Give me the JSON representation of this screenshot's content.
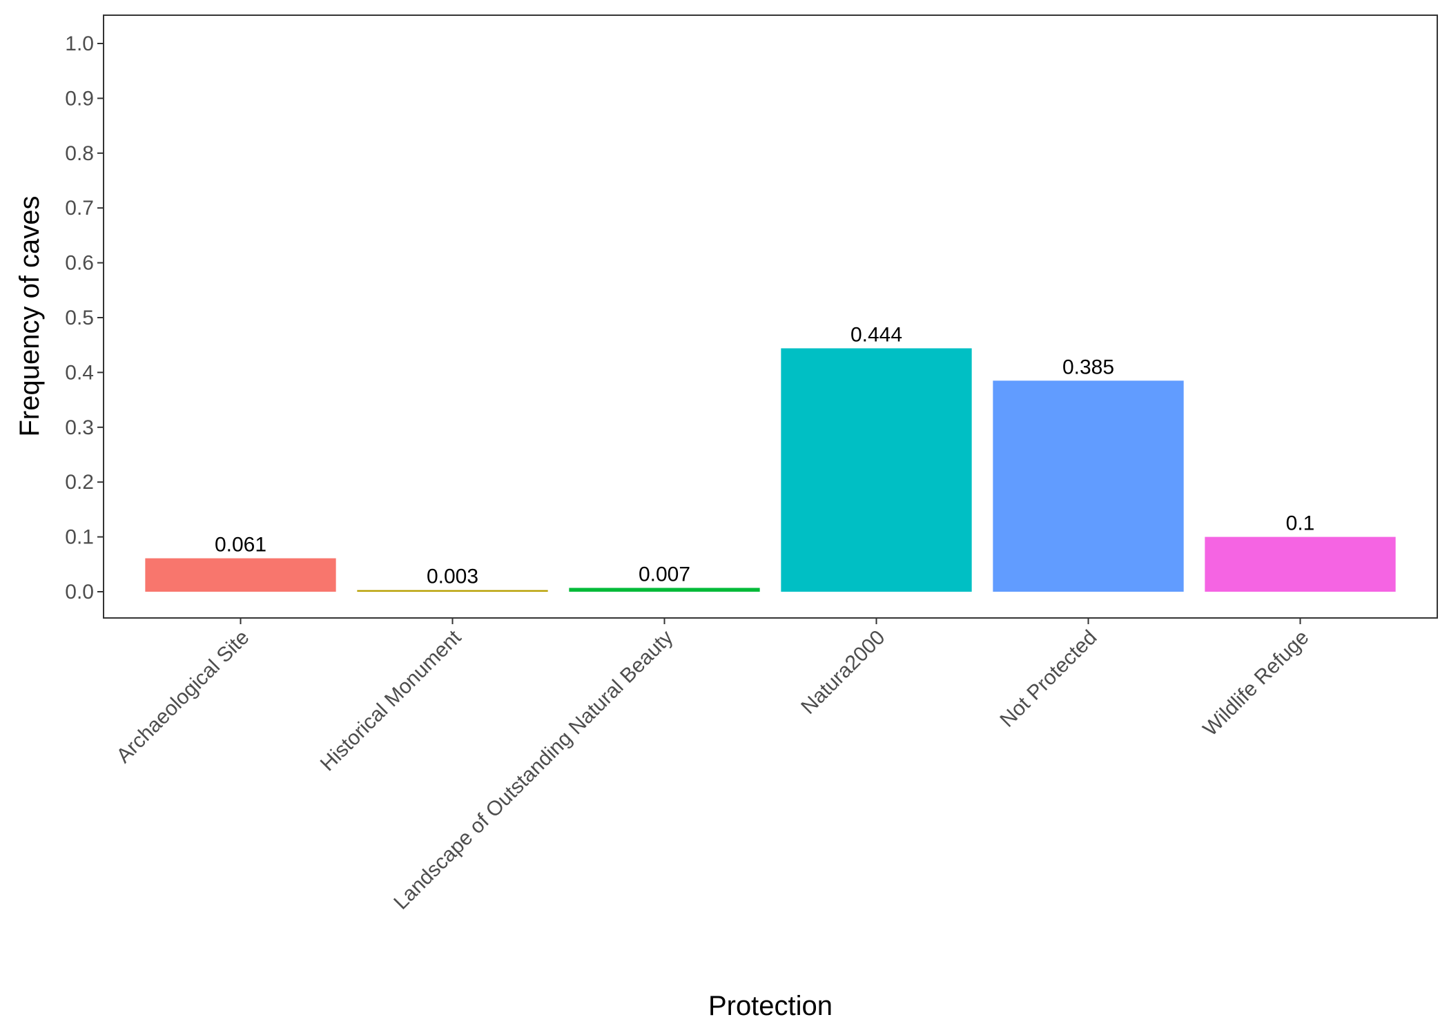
{
  "chart_data": {
    "type": "bar",
    "title": "",
    "xlabel": "Protection",
    "ylabel": "Frequency of caves",
    "ylim": [
      0,
      1.0
    ],
    "yticks": [
      "0.0",
      "0.1",
      "0.2",
      "0.3",
      "0.4",
      "0.5",
      "0.6",
      "0.7",
      "0.8",
      "0.9",
      "1.0"
    ],
    "grid": false,
    "legend": "none",
    "categories": [
      "Archaeological Site",
      "Historical Monument",
      "Landscape of Outstanding Natural Beauty",
      "Natura2000",
      "Not Protected",
      "Wildlife Refuge"
    ],
    "values": [
      0.061,
      0.003,
      0.007,
      0.444,
      0.385,
      0.1
    ],
    "value_labels": [
      "0.061",
      "0.003",
      "0.007",
      "0.444",
      "0.385",
      "0.1"
    ],
    "colors": [
      "#F8766D",
      "#B79F00",
      "#00BA38",
      "#00BFC4",
      "#619CFF",
      "#F564E3"
    ]
  }
}
